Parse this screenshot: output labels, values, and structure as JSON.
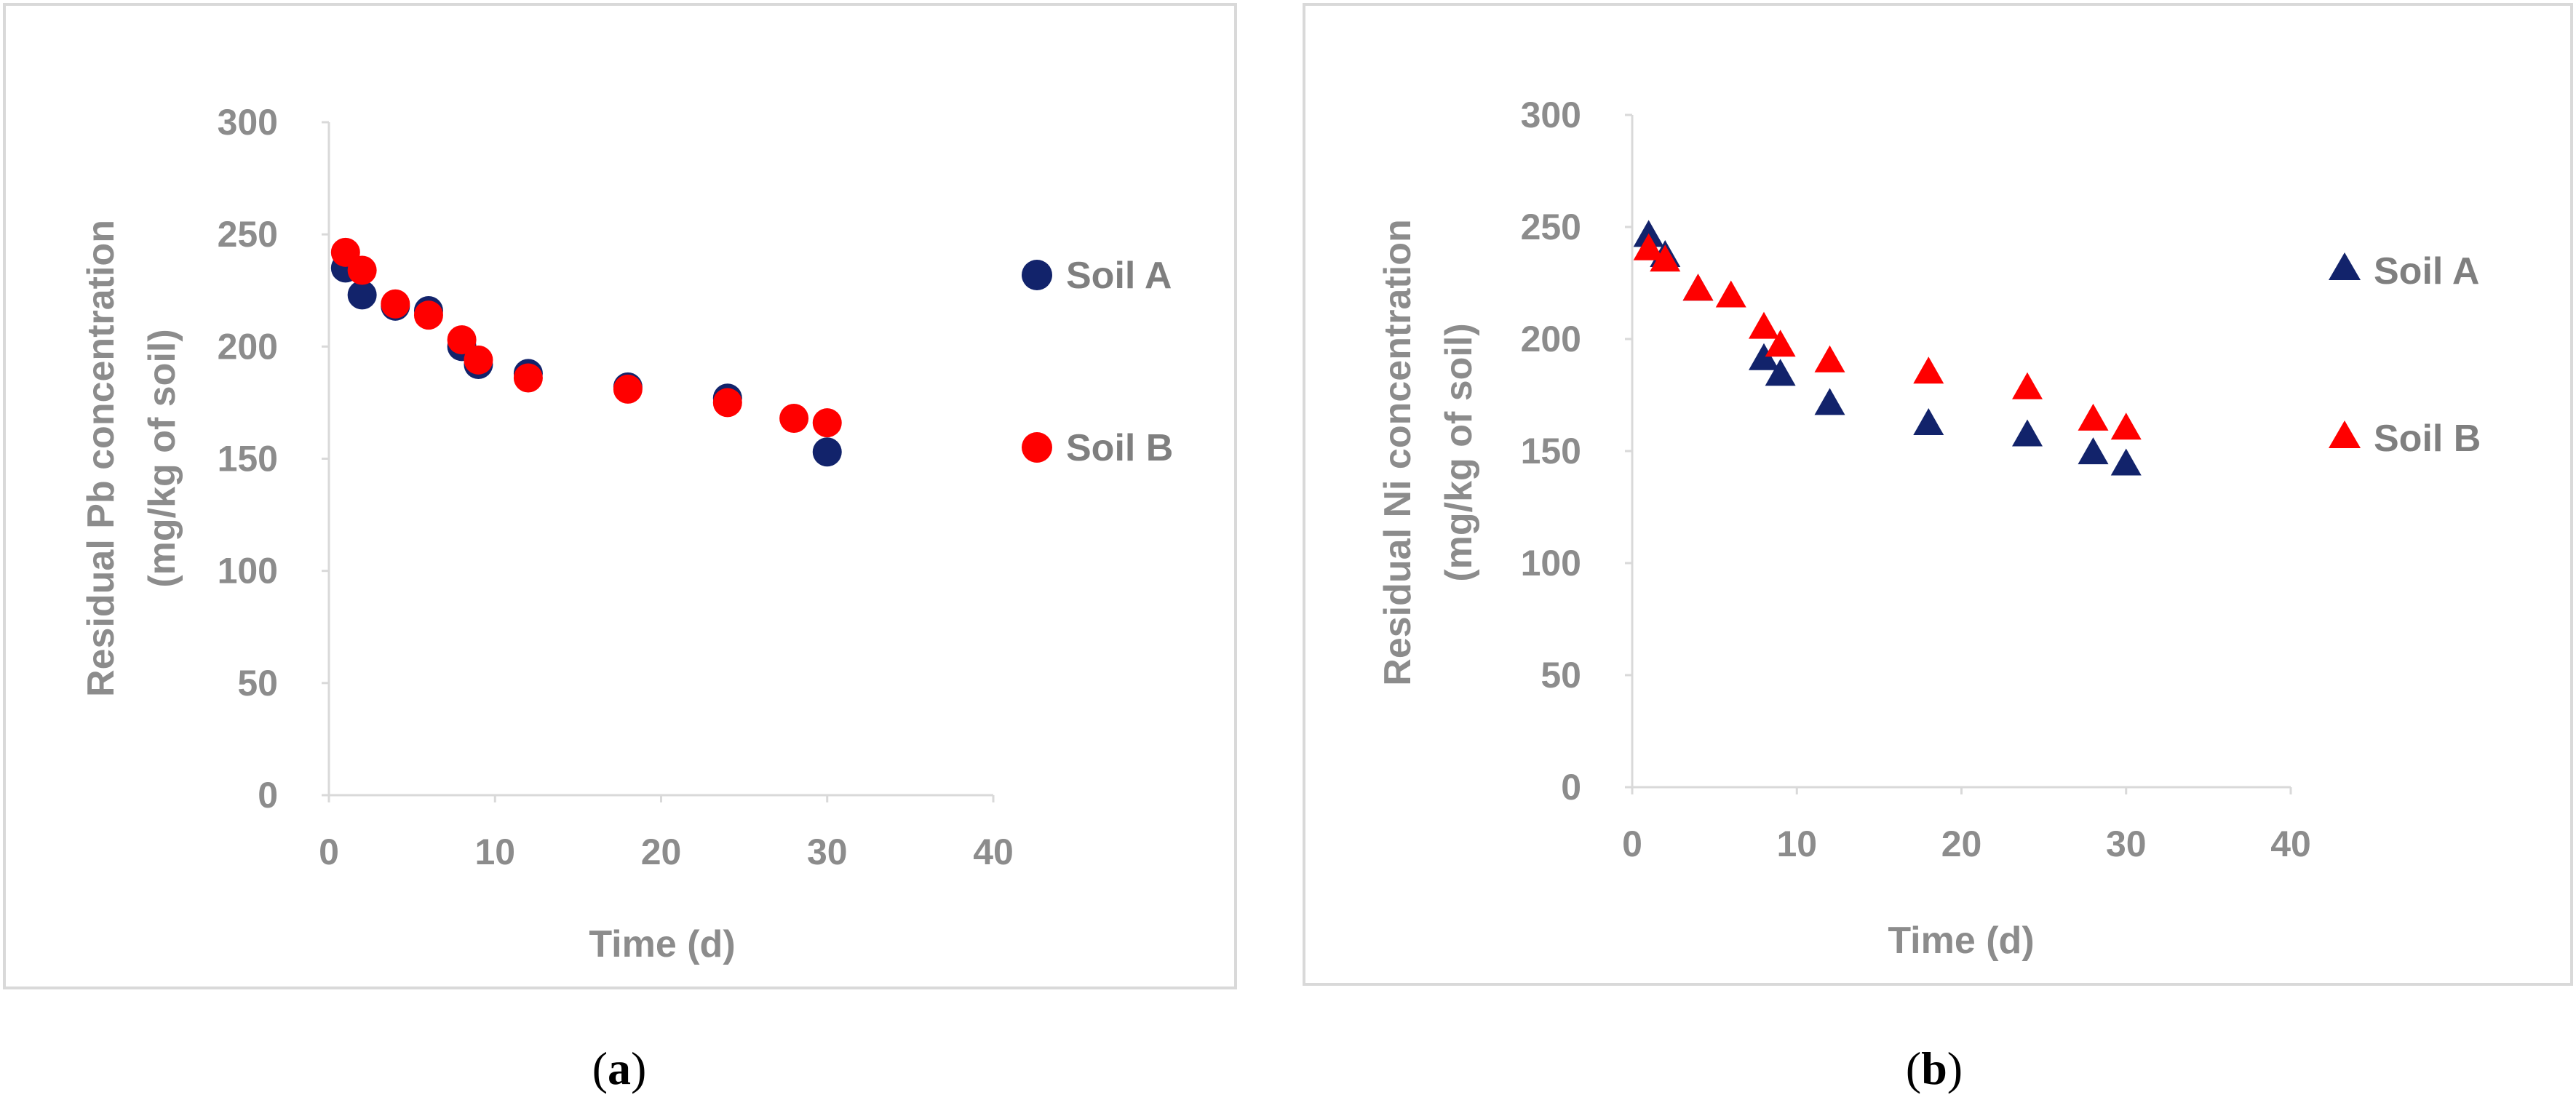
{
  "colors": {
    "soil_a": "#12236b",
    "soil_b": "#ff0000"
  },
  "chart_data": [
    {
      "type": "scatter",
      "panel_label": "(a)",
      "panel_letter": "a",
      "marker": "circle",
      "xlabel": "Time (d)",
      "ylabel_line1": "Residual Pb concentration",
      "ylabel_line2": "(mg/kg of soil)",
      "xlim": [
        0,
        40
      ],
      "ylim": [
        0,
        300
      ],
      "xticks": [
        0,
        10,
        20,
        30,
        40
      ],
      "yticks": [
        0,
        50,
        100,
        150,
        200,
        250,
        300
      ],
      "grid": false,
      "legend_position": "right",
      "series": [
        {
          "name": "Soil A",
          "color_key": "soil_a",
          "x": [
            1,
            2,
            4,
            6,
            8,
            9,
            12,
            18,
            24,
            30
          ],
          "y": [
            235,
            223,
            218,
            216,
            200,
            192,
            188,
            182,
            177,
            153
          ]
        },
        {
          "name": "Soil B",
          "color_key": "soil_b",
          "x": [
            1,
            2,
            4,
            6,
            8,
            9,
            12,
            18,
            24,
            28,
            30
          ],
          "y": [
            242,
            234,
            219,
            214,
            203,
            194,
            186,
            181,
            175,
            168,
            166
          ]
        }
      ]
    },
    {
      "type": "scatter",
      "panel_label": "(b)",
      "panel_letter": "b",
      "marker": "triangle",
      "xlabel": "Time (d)",
      "ylabel_line1": "Residual Ni concentration",
      "ylabel_line2": "(mg/kg of soil)",
      "xlim": [
        0,
        40
      ],
      "ylim": [
        0,
        300
      ],
      "xticks": [
        0,
        10,
        20,
        30,
        40
      ],
      "yticks": [
        0,
        50,
        100,
        150,
        200,
        250,
        300
      ],
      "grid": false,
      "legend_position": "right",
      "series": [
        {
          "name": "Soil A",
          "color_key": "soil_a",
          "x": [
            1,
            2,
            4,
            8,
            9,
            12,
            18,
            24,
            28,
            30
          ],
          "y": [
            246,
            237,
            222,
            191,
            184,
            171,
            162,
            157,
            149,
            144
          ]
        },
        {
          "name": "Soil B",
          "color_key": "soil_b",
          "x": [
            1,
            2,
            4,
            6,
            8,
            9,
            12,
            18,
            24,
            28,
            30
          ],
          "y": [
            240,
            235,
            222,
            219,
            205,
            197,
            190,
            185,
            178,
            164,
            160
          ]
        }
      ]
    }
  ]
}
